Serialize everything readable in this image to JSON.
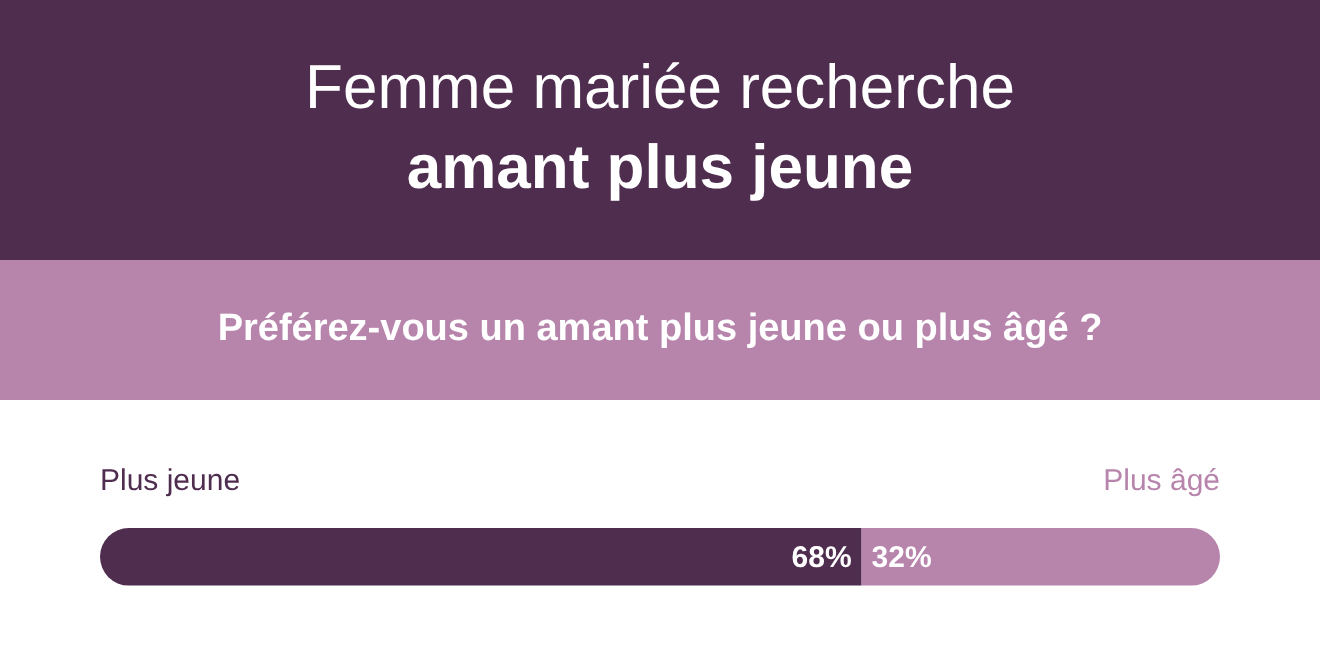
{
  "chart_data": {
    "type": "bar",
    "orientation": "horizontal",
    "stacked": true,
    "title": "Femme mariée recherche",
    "subtitle": "amant plus jeune",
    "annotations": [
      "Préférez-vous un amant plus jeune ou plus âgé ?"
    ],
    "categories": [
      null
    ],
    "xlim": [
      0,
      100
    ],
    "tick_labels": false,
    "legend": "top",
    "series": [
      {
        "name": "Plus jeune",
        "color": "#4f2d4f",
        "values": [
          68
        ],
        "value_labels": [
          "68%"
        ]
      },
      {
        "name": "Plus âgé",
        "color": "#b784ac",
        "values": [
          32
        ],
        "value_labels": [
          "32%"
        ]
      }
    ]
  }
}
